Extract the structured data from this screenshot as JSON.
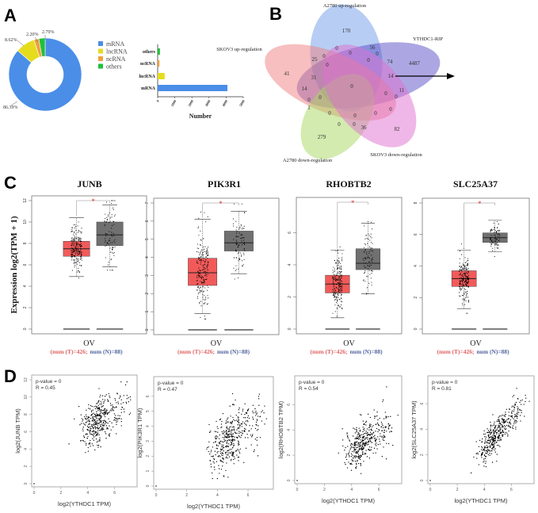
{
  "panel_labels": {
    "A": "A",
    "B": "B",
    "C": "C",
    "D": "D"
  },
  "colors": {
    "mRNA": "#4a8ee8",
    "lncRNA": "#e6dc1e",
    "ncRNA": "#f0a040",
    "others": "#22c03a",
    "tumor": "#f25a5a",
    "normal": "#707070",
    "tumor_text": "#e06060",
    "normal_text": "#51649f",
    "significance": "#e03030",
    "venn_a2780_up": "#6f9be8",
    "venn_ythdc1": "#5a4fc8",
    "venn_skov3_up": "#f08080",
    "venn_a2780_down": "#a8d860",
    "venn_skov3_down": "#e070d0"
  },
  "chart_data": [
    {
      "id": "A-pie",
      "type": "pie",
      "donut": true,
      "categories": [
        "mRNA",
        "lncRNA",
        "ncRNA",
        "others"
      ],
      "values": [
        86.39,
        8.62,
        2.2,
        2.79
      ],
      "value_labels": [
        "86.39%",
        "8.62%",
        "2.20%",
        "2.79%"
      ],
      "legend": [
        "mRNA",
        "lncRNA",
        "ncRNA",
        "others"
      ],
      "legend_position": "right"
    },
    {
      "id": "A-bar",
      "type": "bar",
      "orientation": "horizontal",
      "categories": [
        "others",
        "ncRNA",
        "lncRNA",
        "mRNA"
      ],
      "values": [
        132,
        104,
        407,
        4075
      ],
      "xlabel": "Number",
      "xlim": [
        0,
        5000
      ],
      "xticks": [
        "0",
        "1000",
        "2000",
        "3000",
        "4000",
        "5000"
      ]
    },
    {
      "id": "B-venn",
      "type": "venn",
      "sets": [
        "A2780 up-regulation",
        "YTHDC1-RIP",
        "SKOV3 up-regulation",
        "A2780 down-regulation",
        "SKOV3 down-regulation"
      ],
      "region_counts": [
        "170",
        "56",
        "0",
        "0",
        "0",
        "25",
        "0",
        "0",
        "0",
        "74",
        "4487",
        "41",
        "31",
        "14",
        "0",
        "14",
        "0",
        "11",
        "0",
        "0",
        "0",
        "1",
        "0",
        "0",
        "0",
        "0",
        "0",
        "0",
        "36",
        "82",
        "279"
      ],
      "highlight": "14"
    },
    {
      "id": "C-JUNB",
      "type": "box",
      "title": "JUNB",
      "ylim": [
        0,
        12
      ],
      "yticks": [
        "0",
        "2",
        "4",
        "6",
        "8",
        "10",
        "12"
      ],
      "groups": [
        {
          "name": "T",
          "n": 426,
          "q1": 6.8,
          "median": 7.5,
          "q3": 8.2,
          "whisker_low": 4.9,
          "whisker_high": 10.4
        },
        {
          "name": "N",
          "n": 88,
          "q1": 7.8,
          "median": 8.8,
          "q3": 10.0,
          "whisker_low": 5.8,
          "whisker_high": 11.6
        }
      ],
      "significance": "*",
      "xlabel": "OV",
      "ylabel": "Expression log2(TPM + 1)",
      "count_t": "(num (T)=426;",
      "count_n": "num (N)=88)"
    },
    {
      "id": "C-PIK3R1",
      "type": "box",
      "title": "PIK3R1",
      "ylim": [
        0,
        7
      ],
      "yticks": [
        "0",
        "1",
        "2",
        "3",
        "4",
        "5",
        "6",
        "7"
      ],
      "groups": [
        {
          "name": "T",
          "n": 426,
          "q1": 2.45,
          "median": 3.15,
          "q3": 3.95,
          "whisker_low": 0.9,
          "whisker_high": 6.1
        },
        {
          "name": "N",
          "n": 88,
          "q1": 4.35,
          "median": 4.8,
          "q3": 5.45,
          "whisker_low": 3.1,
          "whisker_high": 6.55
        }
      ],
      "significance": "*",
      "xlabel": "OV",
      "count_t": "(num (T)=426;",
      "count_n": "num (N)=88)"
    },
    {
      "id": "C-RHOBTB2",
      "type": "box",
      "title": "RHOBTB2",
      "ylim": [
        0,
        7.9
      ],
      "yticks": [
        "0",
        "2",
        "4",
        "6"
      ],
      "groups": [
        {
          "name": "T",
          "n": 426,
          "q1": 2.25,
          "median": 2.8,
          "q3": 3.35,
          "whisker_low": 0.7,
          "whisker_high": 4.9
        },
        {
          "name": "N",
          "n": 88,
          "q1": 3.7,
          "median": 4.1,
          "q3": 5.0,
          "whisker_low": 2.2,
          "whisker_high": 6.6
        }
      ],
      "significance": "*",
      "xlabel": "OV",
      "count_t": "(num (T)=426;",
      "count_n": "num (N)=88)"
    },
    {
      "id": "C-SLC25A37",
      "type": "box",
      "title": "SLC25A37",
      "ylim": [
        0,
        8
      ],
      "yticks": [
        "0",
        "2",
        "4",
        "6",
        "8"
      ],
      "groups": [
        {
          "name": "T",
          "n": 426,
          "q1": 2.7,
          "median": 3.2,
          "q3": 3.7,
          "whisker_low": 1.3,
          "whisker_high": 5.0
        },
        {
          "name": "N",
          "n": 88,
          "q1": 5.5,
          "median": 5.8,
          "q3": 6.1,
          "whisker_low": 4.9,
          "whisker_high": 6.9
        }
      ],
      "significance": "*",
      "xlabel": "OV",
      "count_t": "(num (T)=426;",
      "count_n": "num (N)=88)"
    },
    {
      "id": "D-JUNB",
      "type": "scatter",
      "p_value": "p-value = 0",
      "r_label": "R = 0.45",
      "R": 0.45,
      "xlabel": "log2(YTHDC1 TPM)",
      "ylabel": "log2(JUNB TPM)",
      "xlim": [
        0,
        7.5
      ],
      "ylim": [
        0,
        12
      ],
      "xticks": [
        "0",
        "2",
        "4",
        "6"
      ],
      "yticks": [
        "0",
        "2",
        "4",
        "6",
        "8",
        "10",
        "12"
      ]
    },
    {
      "id": "D-PIK3R1",
      "type": "scatter",
      "p_value": "p-value = 0",
      "r_label": "R = 0.47",
      "R": 0.47,
      "xlabel": "log2(YTHDC1 TPM)",
      "ylabel": "log2(PIK3R1 TPM)",
      "xlim": [
        0,
        7.5
      ],
      "ylim": [
        0,
        7
      ],
      "xticks": [
        "0",
        "2",
        "4",
        "6"
      ],
      "yticks": [
        "0",
        "1",
        "2",
        "3",
        "4",
        "5",
        "6"
      ]
    },
    {
      "id": "D-RHOBTB2",
      "type": "scatter",
      "p_value": "p-value = 0",
      "r_label": "R = 0.54",
      "R": 0.54,
      "xlabel": "log2(YTHDC1 TPM)",
      "ylabel": "log2(RHOBTB2 TPM)",
      "xlim": [
        0,
        7.5
      ],
      "ylim": [
        0,
        7.9
      ],
      "xticks": [
        "0",
        "2",
        "4",
        "6"
      ],
      "yticks": [
        "0",
        "2",
        "4",
        "6"
      ]
    },
    {
      "id": "D-SLC25A37",
      "type": "scatter",
      "p_value": "p-value = 0",
      "r_label": "R = 0.81",
      "R": 0.81,
      "xlabel": "log2(YTHDC1 TPM)",
      "ylabel": "log2(SLC25A37 TPM)",
      "xlim": [
        0,
        7.5
      ],
      "ylim": [
        0,
        7.8
      ],
      "xticks": [
        "0",
        "2",
        "4",
        "6"
      ],
      "yticks": [
        "0",
        "2",
        "4",
        "6"
      ]
    }
  ]
}
